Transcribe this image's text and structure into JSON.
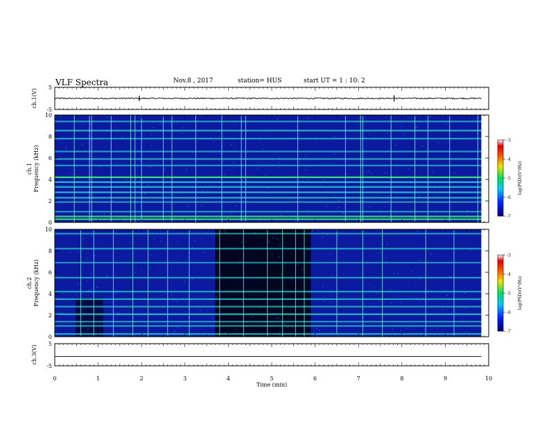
{
  "header": {
    "title": "VLF Spectra",
    "date": "Nov.8 , 2017",
    "station": "station= HUS",
    "start": "start UT = 1 : 10: 2"
  },
  "colors": {
    "spectrogram_background": "#0b1a9e",
    "quiet_background": "#000000",
    "band": "#2fd0d0",
    "strong_band": "#3de07a",
    "trace": "#000000"
  },
  "chart_data": [
    {
      "type": "line",
      "name": "ch1-waveform",
      "ylabel": "ch.1(V)",
      "ylim": [
        -5,
        5
      ],
      "yticks": [
        5,
        -5
      ],
      "xlim": [
        0,
        10
      ],
      "baseline_v": 0,
      "noise_amplitude_v": 0.3,
      "x_end_min": 9.83,
      "spikes": [
        {
          "x": 1.95,
          "amp": 1.2
        },
        {
          "x": 7.82,
          "amp": 1.4
        }
      ]
    },
    {
      "type": "heatmap",
      "name": "ch1-spectrogram",
      "ylabel": "ch.1 Frequency (kHz)",
      "ylim": [
        0,
        10
      ],
      "yticks": [
        0,
        2,
        4,
        6,
        8,
        10
      ],
      "xlim": [
        0,
        10
      ],
      "x_end_min": 9.83,
      "background": "#0b1a9e",
      "bands_khz": [
        {
          "f": 0.3,
          "level": 0.9
        },
        {
          "f": 0.55,
          "level": 0.9
        },
        {
          "f": 1.0,
          "level": 0.5
        },
        {
          "f": 1.9,
          "level": 0.5
        },
        {
          "f": 2.3,
          "level": 0.7
        },
        {
          "f": 2.8,
          "level": 0.75
        },
        {
          "f": 3.3,
          "level": 0.75
        },
        {
          "f": 3.75,
          "level": 0.8
        },
        {
          "f": 4.2,
          "level": 1.0
        },
        {
          "f": 5.3,
          "level": 0.5
        },
        {
          "f": 5.9,
          "level": 0.6
        },
        {
          "f": 6.6,
          "level": 0.5
        },
        {
          "f": 7.8,
          "level": 0.55
        },
        {
          "f": 8.55,
          "level": 0.7
        },
        {
          "f": 9.4,
          "level": 0.55
        }
      ],
      "sferics_min": [
        0.45,
        0.8,
        0.85,
        1.3,
        1.75,
        1.85,
        2.0,
        2.5,
        2.7,
        3.25,
        3.85,
        4.3,
        4.4,
        5.6,
        6.7,
        7.05,
        7.1,
        7.75,
        8.3,
        8.6,
        9.1,
        9.75
      ],
      "colorbar": {
        "label": "log(PSD)(V²/Hz)",
        "range": [
          -7,
          -3
        ],
        "ticks": [
          -3,
          -4,
          -5,
          -6,
          -7
        ]
      }
    },
    {
      "type": "heatmap",
      "name": "ch2-spectrogram",
      "ylabel": "ch.2 Frequency (kHz)",
      "ylim": [
        0,
        10
      ],
      "yticks": [
        0,
        2,
        4,
        6,
        8,
        10
      ],
      "xlim": [
        0,
        10
      ],
      "x_end_min": 9.83,
      "background": "#0b1a9e",
      "quiet_interval_min": [
        3.7,
        5.9
      ],
      "bands_khz": [
        {
          "f": 0.25,
          "level": 0.7
        },
        {
          "f": 1.0,
          "level": 0.5
        },
        {
          "f": 1.4,
          "level": 0.5
        },
        {
          "f": 2.1,
          "level": 0.75
        },
        {
          "f": 2.8,
          "level": 0.55
        },
        {
          "f": 3.5,
          "level": 0.65
        },
        {
          "f": 4.2,
          "level": 0.6
        },
        {
          "f": 5.5,
          "level": 0.55
        },
        {
          "f": 6.9,
          "level": 0.45
        },
        {
          "f": 8.2,
          "level": 0.55
        },
        {
          "f": 9.6,
          "level": 0.45
        }
      ],
      "sferics_min": [
        0.6,
        0.9,
        1.35,
        1.8,
        2.15,
        2.6,
        3.1,
        3.8,
        4.35,
        4.9,
        5.25,
        5.55,
        5.75,
        6.5,
        7.1,
        7.55,
        8.55,
        9.2
      ],
      "colorbar": {
        "label": "log(PSD)(V²/Hz)",
        "range": [
          -7,
          -3
        ],
        "ticks": [
          -3,
          -4,
          -5,
          -6,
          -7
        ]
      }
    },
    {
      "type": "line",
      "name": "ch3-waveform",
      "ylabel": "ch.3(V)",
      "ylim": [
        -5,
        5
      ],
      "yticks": [
        5,
        -5
      ],
      "xlim": [
        0,
        10
      ],
      "baseline_v": -0.8,
      "noise_amplitude_v": 0,
      "x_end_min": 9.83,
      "xlabel": "Time (min)",
      "xticks": [
        0,
        1,
        2,
        3,
        4,
        5,
        6,
        7,
        8,
        9,
        10
      ]
    }
  ]
}
